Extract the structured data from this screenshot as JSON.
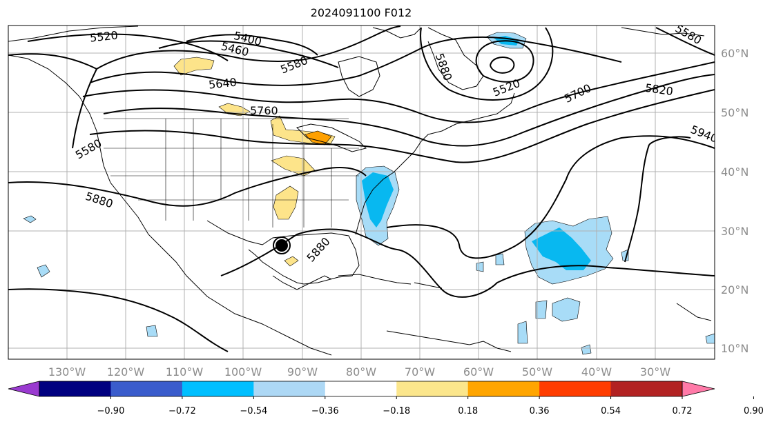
{
  "title": "2024091100 F012",
  "map": {
    "lon_labels": [
      "130°W",
      "120°W",
      "110°W",
      "100°W",
      "90°W",
      "80°W",
      "70°W",
      "60°W",
      "50°W",
      "40°W",
      "30°W"
    ],
    "lat_labels": [
      "60°N",
      "50°N",
      "40°N",
      "30°N",
      "20°N",
      "10°N"
    ],
    "contour_labels": [
      "5520",
      "5400",
      "5460",
      "5580",
      "5640",
      "5760",
      "5880",
      "5880",
      "5580",
      "5520",
      "5700",
      "5820",
      "5580",
      "5940",
      "5880"
    ],
    "colors": {
      "contour": "#000000",
      "coast": "#000000",
      "grid": "#b0b0b0",
      "light_blue": "#a8dcf7",
      "mid_blue": "#08b8f0",
      "yellow": "#fde48a",
      "orange": "#ff9f00"
    }
  },
  "colorbar": {
    "labels": [
      "−0.90",
      "−0.72",
      "−0.54",
      "−0.36",
      "−0.18",
      "0.18",
      "0.36",
      "0.54",
      "0.72",
      "0.90"
    ],
    "colors": [
      "#9a3ad0",
      "#000080",
      "#3a5ccc",
      "#00bfff",
      "#add8f5",
      "#ffffff",
      "#fbe68c",
      "#ffa500",
      "#ff3d00",
      "#b22222",
      "#ff7aa8"
    ]
  }
}
